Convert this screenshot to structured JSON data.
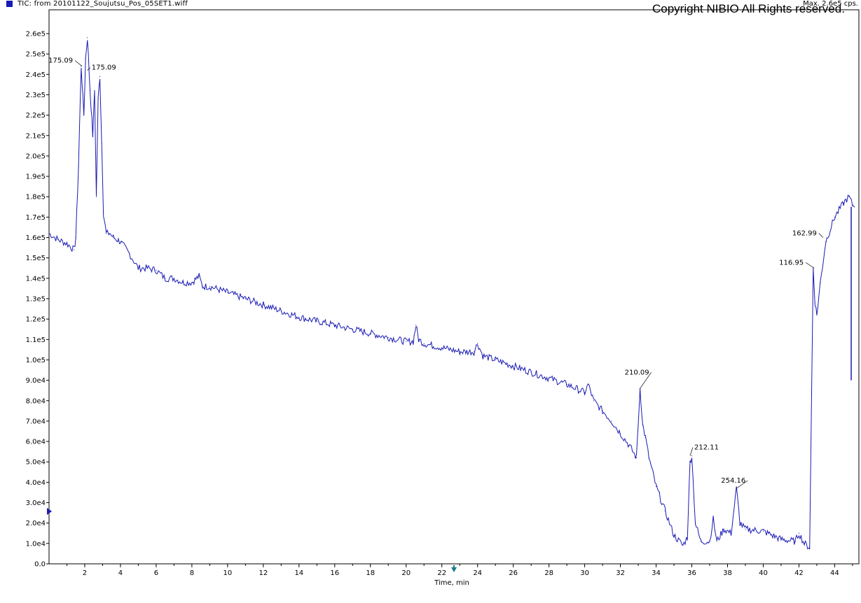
{
  "header": {
    "legend_label": "TIC: from 20101122_Soujutsu_Pos_05SET1.wiff",
    "max_label": "Max. 2.6e5 cps.",
    "copyright": "Copyright NIBIO All Rights reserved."
  },
  "colors": {
    "trace": "#1a1ab4",
    "axis": "#000000",
    "marker": "#1a7a8a"
  },
  "chart_data": {
    "type": "line",
    "title": "TIC: from 20101122_Soujutsu_Pos_05SET1.wiff",
    "xlabel": "Time, min",
    "ylabel": "",
    "xlim": [
      0,
      45.2
    ],
    "ylim": [
      0,
      260000
    ],
    "grid": false,
    "x_ticks": [
      2,
      4,
      6,
      8,
      10,
      12,
      14,
      16,
      18,
      20,
      22,
      24,
      26,
      28,
      30,
      32,
      34,
      36,
      38,
      40,
      42,
      44
    ],
    "x_tick_labels": [
      "2",
      "4",
      "6",
      "8",
      "10",
      "12",
      "14",
      "16",
      "18",
      "20",
      "22",
      "24",
      "26",
      "28",
      "30",
      "32",
      "34",
      "36",
      "38",
      "40",
      "42",
      "44"
    ],
    "y_ticks": [
      0,
      10000,
      20000,
      30000,
      40000,
      50000,
      60000,
      70000,
      80000,
      90000,
      100000,
      110000,
      120000,
      130000,
      140000,
      150000,
      160000,
      170000,
      180000,
      190000,
      200000,
      210000,
      220000,
      230000,
      240000,
      250000,
      260000
    ],
    "y_tick_labels": [
      "0.0",
      "1.0e4",
      "2.0e4",
      "3.0e4",
      "4.0e4",
      "5.0e4",
      "6.0e4",
      "7.0e4",
      "8.0e4",
      "9.0e4",
      "1.0e5",
      "1.1e5",
      "1.2e5",
      "1.3e5",
      "1.4e5",
      "1.5e5",
      "1.6e5",
      "1.7e5",
      "1.8e5",
      "1.9e5",
      "2.0e5",
      "2.1e5",
      "2.2e5",
      "2.3e5",
      "2.4e5",
      "2.5e5",
      "2.6e5"
    ],
    "series": [
      {
        "x": [
          0.0,
          0.5,
          1.0,
          1.4,
          1.5,
          1.65,
          1.8,
          1.95,
          2.05,
          2.15,
          2.3,
          2.45,
          2.55,
          2.65,
          2.75,
          2.85,
          2.95,
          3.05,
          3.2,
          3.4,
          3.6,
          4.0,
          4.5,
          5.0,
          5.5,
          6.0,
          6.5,
          7.0,
          7.5,
          8.0,
          8.4,
          8.6,
          9.0,
          10.0,
          11.0,
          12.0,
          13.0,
          14.0,
          15.0,
          16.0,
          17.0,
          18.0,
          19.0,
          20.0,
          20.4,
          20.55,
          20.7,
          21.0,
          22.0,
          23.0,
          23.8,
          24.0,
          24.3,
          25.0,
          26.0,
          27.0,
          28.0,
          29.0,
          30.0,
          30.2,
          30.5,
          31.0,
          31.5,
          32.0,
          32.5,
          32.9,
          33.1,
          33.25,
          33.4,
          33.6,
          34.0,
          34.5,
          35.0,
          35.5,
          35.75,
          35.9,
          36.0,
          36.2,
          36.5,
          37.0,
          37.2,
          37.4,
          37.8,
          38.2,
          38.5,
          38.7,
          39.0,
          40.0,
          41.0,
          41.8,
          42.0,
          42.3,
          42.6,
          42.8,
          42.9,
          43.0,
          43.2,
          43.5,
          44.0,
          44.5,
          44.8,
          45.0,
          45.1
        ],
        "y": [
          162000,
          159000,
          157000,
          154000,
          160000,
          195000,
          244000,
          220000,
          248000,
          258000,
          232000,
          210000,
          232000,
          180000,
          228000,
          239000,
          206000,
          172000,
          162000,
          162000,
          160000,
          158000,
          152000,
          145000,
          145000,
          144000,
          140000,
          140000,
          138000,
          138000,
          141000,
          136000,
          136000,
          133000,
          130000,
          127000,
          124000,
          121000,
          119000,
          117000,
          115000,
          113000,
          111000,
          109000,
          109000,
          117000,
          110000,
          108000,
          106000,
          104000,
          104000,
          108000,
          102000,
          100000,
          97000,
          94000,
          91000,
          88000,
          84000,
          88000,
          80000,
          75000,
          70000,
          64000,
          58000,
          52000,
          86000,
          68000,
          62000,
          52000,
          38000,
          26000,
          14000,
          9000,
          13000,
          50000,
          53000,
          20000,
          11000,
          11000,
          22000,
          11000,
          17000,
          15000,
          37000,
          20000,
          17000,
          16000,
          12000,
          11000,
          15000,
          10000,
          8000,
          145000,
          128000,
          122000,
          138000,
          158000,
          170000,
          177000,
          180000,
          176000,
          175000
        ]
      }
    ],
    "annotations": [
      {
        "text": "175.09",
        "x": 1.85,
        "y": 244000
      },
      {
        "text": "175.09",
        "x": 2.15,
        "y": 242000
      },
      {
        "text": "210.09",
        "x": 33.1,
        "y": 86000
      },
      {
        "text": "212.11",
        "x": 35.9,
        "y": 53000
      },
      {
        "text": "254.16",
        "x": 38.5,
        "y": 37000
      },
      {
        "text": "162.99",
        "x": 43.35,
        "y": 160000
      },
      {
        "text": "116.95",
        "x": 42.85,
        "y": 145000
      }
    ]
  }
}
